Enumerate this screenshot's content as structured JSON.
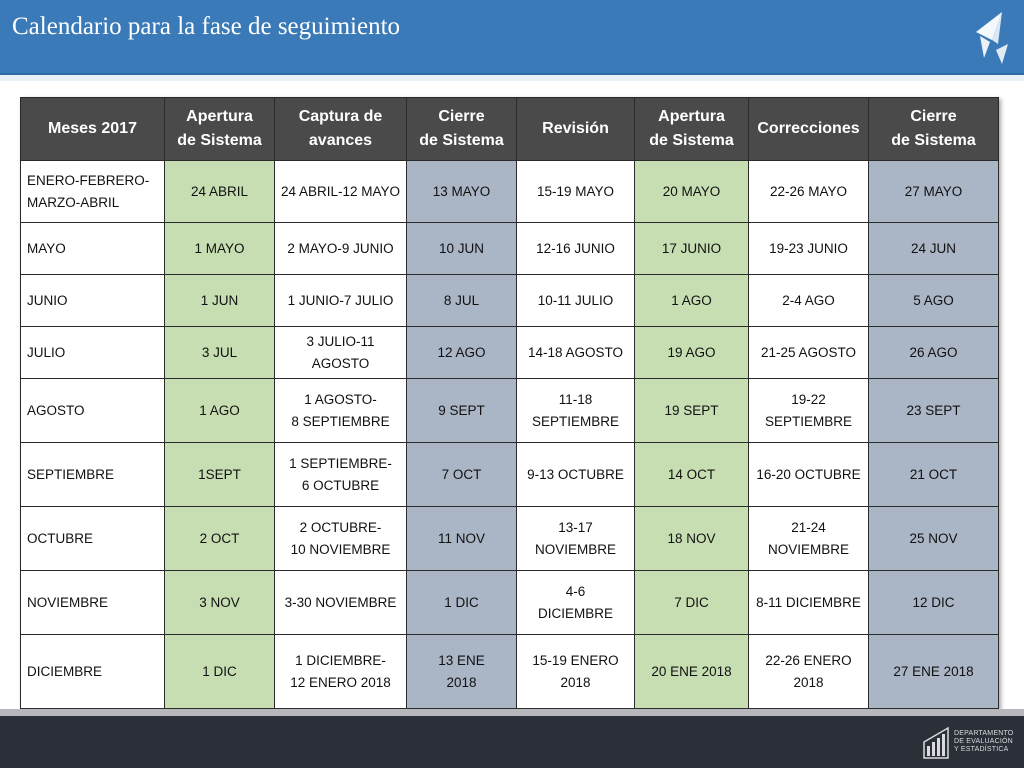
{
  "header": {
    "title": "Calendario para la fase de seguimiento"
  },
  "table": {
    "columns": [
      "Meses 2017",
      "Apertura\nde Sistema",
      "Captura de\navances",
      "Cierre\nde Sistema",
      "Revisión",
      "Apertura\nde Sistema",
      "Correcciones",
      "Cierre\nde Sistema"
    ],
    "rows": [
      [
        "ENERO-FEBRERO-\nMARZO-ABRIL",
        "24 ABRIL",
        "24 ABRIL-12 MAYO",
        "13 MAYO",
        "15-19 MAYO",
        "20 MAYO",
        "22-26 MAYO",
        "27 MAYO"
      ],
      [
        "MAYO",
        "1 MAYO",
        "2 MAYO-9 JUNIO",
        "10 JUN",
        "12-16 JUNIO",
        "17 JUNIO",
        "19-23 JUNIO",
        "24 JUN"
      ],
      [
        "JUNIO",
        "1 JUN",
        "1 JUNIO-7 JULIO",
        "8 JUL",
        "10-11 JULIO",
        "1 AGO",
        "2-4 AGO",
        "5 AGO"
      ],
      [
        "JULIO",
        "3 JUL",
        "3 JULIO-11 AGOSTO",
        "12 AGO",
        "14-18 AGOSTO",
        "19 AGO",
        "21-25 AGOSTO",
        "26 AGO"
      ],
      [
        "AGOSTO",
        "1 AGO",
        "1 AGOSTO-\n8 SEPTIEMBRE",
        "9  SEPT",
        "11-18\nSEPTIEMBRE",
        "19 SEPT",
        "19-22\nSEPTIEMBRE",
        "23 SEPT"
      ],
      [
        "SEPTIEMBRE",
        "1SEPT",
        "1 SEPTIEMBRE-\n6  OCTUBRE",
        "7 OCT",
        "9-13 OCTUBRE",
        "14 OCT",
        "16-20 OCTUBRE",
        "21 OCT"
      ],
      [
        "OCTUBRE",
        "2 OCT",
        "2 OCTUBRE-\n10 NOVIEMBRE",
        "11 NOV",
        "13-17\nNOVIEMBRE",
        "18 NOV",
        "21-24\nNOVIEMBRE",
        "25 NOV"
      ],
      [
        "NOVIEMBRE",
        "3 NOV",
        "3-30 NOVIEMBRE",
        "1 DIC",
        "4-6\nDICIEMBRE",
        "7 DIC",
        "8-11 DICIEMBRE",
        "12 DIC"
      ],
      [
        "DICIEMBRE",
        "1 DIC",
        "1 DICIEMBRE-\n12 ENERO 2018",
        "13 ENE\n2018",
        "15-19 ENERO\n2018",
        "20 ENE 2018",
        "22-26 ENERO\n2018",
        "27 ENE 2018"
      ]
    ],
    "column_colors": [
      "none",
      "green",
      "none",
      "blue",
      "none",
      "green",
      "none",
      "blue"
    ]
  },
  "footer": {
    "logo_text": "DEPARTAMENTO\nDE EVALUACIÓN\nY ESTADÍSTICA"
  },
  "colors": {
    "header_blue": "#3a7ab8",
    "table_header": "#4a4a4a",
    "green_cell": "#c7deb2",
    "blue_cell": "#aab5c6",
    "footer_dark": "#2a2f38"
  },
  "icons": {
    "header_logo": "paper-plane-logo-icon",
    "footer_logo": "department-logo-icon"
  }
}
